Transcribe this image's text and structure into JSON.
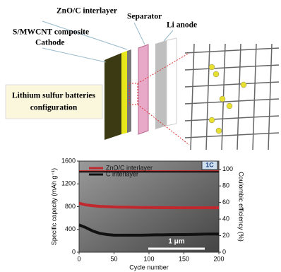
{
  "diagram": {
    "labels": [
      "ZnO/C interlayer",
      "Separator",
      "Li anode"
    ],
    "cathode_label": [
      "S/MWCNT composite",
      "Cathode"
    ],
    "config_label": [
      "Lithium sulfur batteries",
      "configuration"
    ]
  },
  "chart_data": {
    "type": "line",
    "x_label": "Cycle number",
    "y_label": "Specific capacity (mAh g⁻¹)",
    "y2_label": "Coulombic efficiency (%)",
    "annotations": [
      "1C",
      "1 μm"
    ],
    "x": [
      0,
      10,
      20,
      30,
      40,
      50,
      60,
      70,
      80,
      90,
      100,
      110,
      120,
      130,
      140,
      150,
      160,
      170,
      180,
      190,
      200
    ],
    "series": [
      {
        "name": "ZnO/C interlayer",
        "color": "#c0282d",
        "values": [
          860,
          830,
          815,
          805,
          800,
          795,
          790,
          790,
          788,
          785,
          785,
          783,
          782,
          781,
          780,
          780,
          780,
          780,
          780,
          780,
          780
        ]
      },
      {
        "name": "C interlayer",
        "color": "#111111",
        "values": [
          480,
          430,
          370,
          330,
          310,
          300,
          300,
          300,
          300,
          300,
          302,
          305,
          305,
          308,
          310,
          310,
          312,
          315,
          318,
          320,
          320
        ]
      },
      {
        "color": "#c0282d",
        "axis": "y2",
        "values": [
          98,
          98,
          98,
          98,
          98,
          98,
          98,
          98,
          98,
          98,
          98,
          98,
          98,
          98,
          98,
          98,
          98,
          98,
          98,
          98,
          98
        ]
      },
      {
        "color": "#111111",
        "axis": "y2",
        "values": [
          97,
          97,
          97,
          97,
          97,
          97,
          97,
          97,
          97,
          97,
          97,
          97,
          97,
          97,
          97,
          97,
          97,
          97,
          97,
          97,
          97
        ]
      }
    ],
    "xlim": [
      0,
      200
    ],
    "xticks": [
      0,
      50,
      100,
      150,
      200
    ],
    "ylim": [
      0,
      1600
    ],
    "yticks": [
      0,
      400,
      800,
      1200,
      1600
    ],
    "y2lim": [
      0,
      110
    ],
    "y2ticks": [
      0,
      20,
      40,
      60,
      80,
      100
    ]
  }
}
